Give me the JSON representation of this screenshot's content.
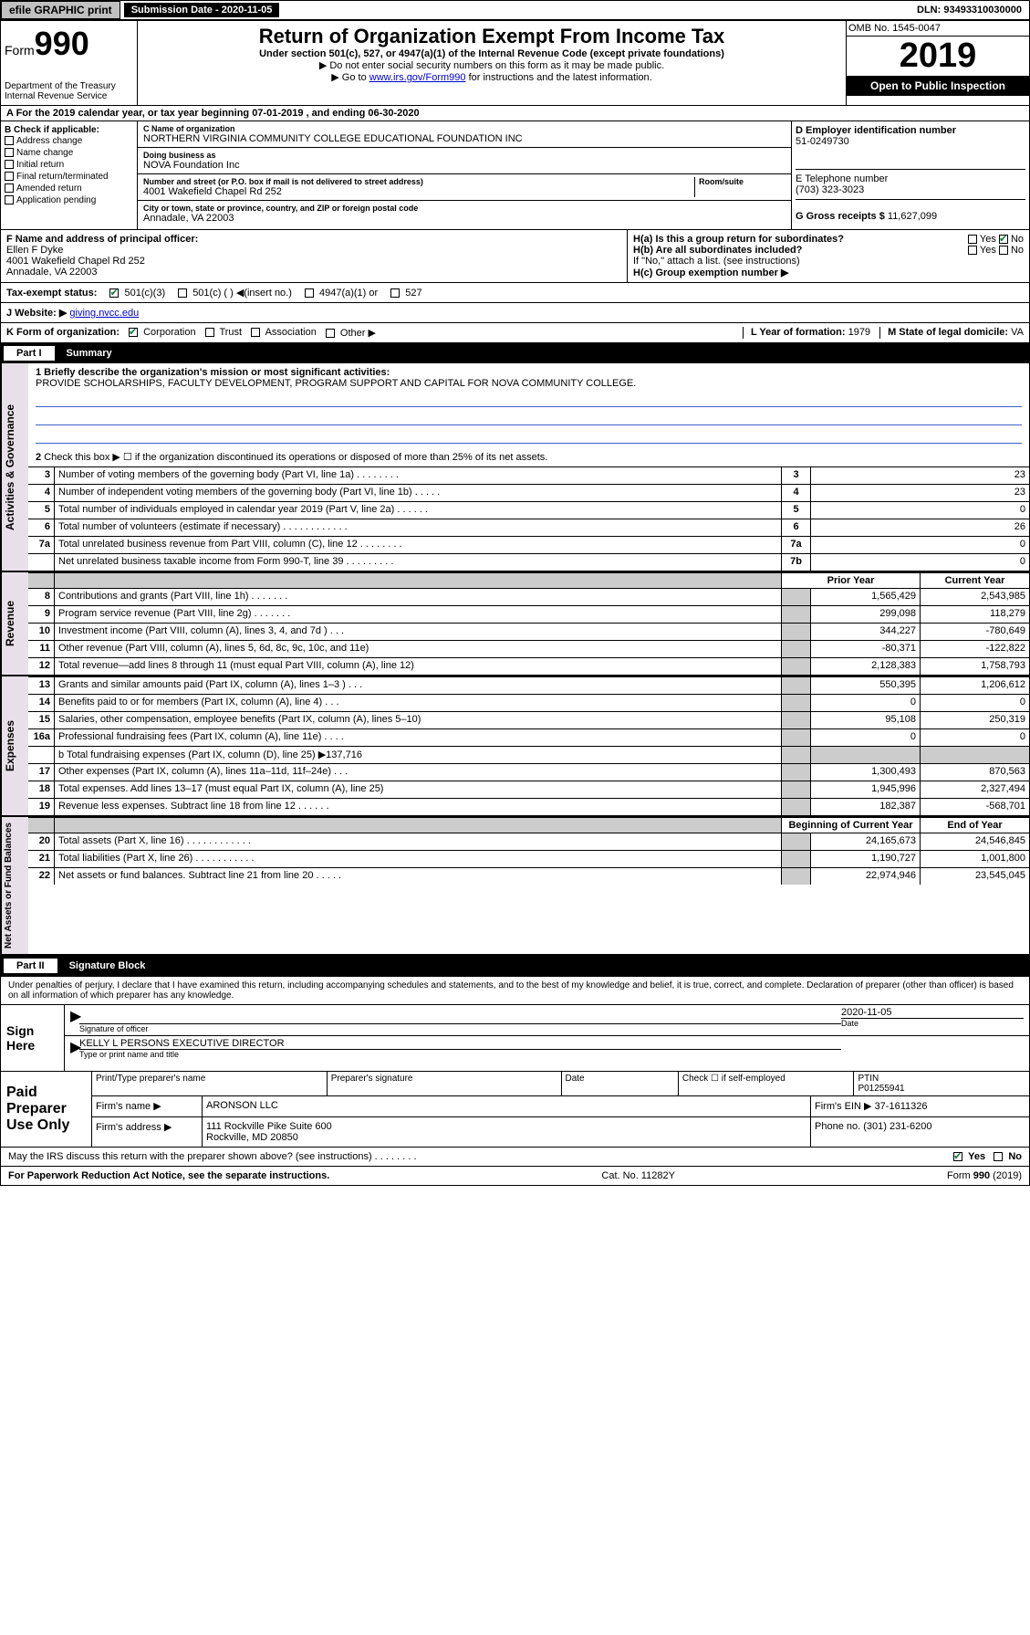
{
  "topbar": {
    "efile": "efile GRAPHIC print",
    "subdate_label": "Submission Date - ",
    "subdate": "2020-11-05",
    "dln_label": "DLN: ",
    "dln": "93493310030000"
  },
  "header": {
    "form_prefix": "Form",
    "form_num": "990",
    "dept": "Department of the Treasury\nInternal Revenue Service",
    "title": "Return of Organization Exempt From Income Tax",
    "subtitle": "Under section 501(c), 527, or 4947(a)(1) of the Internal Revenue Code (except private foundations)",
    "note1": "▶ Do not enter social security numbers on this form as it may be made public.",
    "note2_pre": "▶ Go to ",
    "note2_link": "www.irs.gov/Form990",
    "note2_post": " for instructions and the latest information.",
    "omb": "OMB No. 1545-0047",
    "year": "2019",
    "inspect": "Open to Public Inspection"
  },
  "rowA": "A  For the 2019 calendar year, or tax year beginning 07-01-2019   , and ending 06-30-2020",
  "B": {
    "label": "B Check if applicable:",
    "opts": [
      "Address change",
      "Name change",
      "Initial return",
      "Final return/terminated",
      "Amended return",
      "Application pending"
    ]
  },
  "C": {
    "name_label": "C Name of organization",
    "name": "NORTHERN VIRGINIA COMMUNITY COLLEGE EDUCATIONAL FOUNDATION INC",
    "dba_label": "Doing business as",
    "dba": "NOVA Foundation Inc",
    "addr_label": "Number and street (or P.O. box if mail is not delivered to street address)",
    "room_label": "Room/suite",
    "addr": "4001 Wakefield Chapel Rd 252",
    "city_label": "City or town, state or province, country, and ZIP or foreign postal code",
    "city": "Annadale, VA  22003"
  },
  "D": {
    "label": "D Employer identification number",
    "val": "51-0249730"
  },
  "E": {
    "label": "E Telephone number",
    "val": "(703) 323-3023"
  },
  "G": {
    "label": "G Gross receipts $ ",
    "val": "11,627,099"
  },
  "F": {
    "label": "F  Name and address of principal officer:",
    "name": "Ellen F Dyke",
    "addr1": "4001 Wakefield Chapel Rd 252",
    "addr2": "Annadale, VA  22003"
  },
  "H": {
    "a": "H(a)  Is this a group return for subordinates?",
    "a_no": true,
    "b": "H(b)  Are all subordinates included?",
    "b_note": "If \"No,\" attach a list. (see instructions)",
    "c": "H(c)  Group exemption number ▶"
  },
  "I": {
    "label": "Tax-exempt status:",
    "c501c3": true,
    "opts": [
      "501(c)(3)",
      "501(c) (  ) ◀(insert no.)",
      "4947(a)(1) or",
      "527"
    ]
  },
  "J": {
    "label": "J  Website: ▶",
    "val": "giving.nvcc.edu"
  },
  "K": {
    "label": "K Form of organization:",
    "corp": true,
    "opts": [
      "Corporation",
      "Trust",
      "Association",
      "Other ▶"
    ]
  },
  "L": {
    "label": "L Year of formation: ",
    "val": "1979"
  },
  "M": {
    "label": "M State of legal domicile: ",
    "val": "VA"
  },
  "part1": {
    "label": "Part I",
    "title": "Summary"
  },
  "governance": {
    "label": "Activities & Governance",
    "l1": "1  Briefly describe the organization's mission or most significant activities:",
    "mission": "PROVIDE SCHOLARSHIPS, FACULTY DEVELOPMENT, PROGRAM SUPPORT AND CAPITAL FOR NOVA COMMUNITY COLLEGE.",
    "l2": "Check this box ▶ ☐  if the organization discontinued its operations or disposed of more than 25% of its net assets.",
    "rows": [
      {
        "n": "3",
        "t": "Number of voting members of the governing body (Part VI, line 1a)  .  .  .  .  .  .  .  .",
        "k": "3",
        "v": "23"
      },
      {
        "n": "4",
        "t": "Number of independent voting members of the governing body (Part VI, line 1b)  .  .  .  .  .",
        "k": "4",
        "v": "23"
      },
      {
        "n": "5",
        "t": "Total number of individuals employed in calendar year 2019 (Part V, line 2a)  .  .  .  .  .  .",
        "k": "5",
        "v": "0"
      },
      {
        "n": "6",
        "t": "Total number of volunteers (estimate if necessary)  .  .  .  .  .  .  .  .  .  .  .  .",
        "k": "6",
        "v": "26"
      },
      {
        "n": "7a",
        "t": "Total unrelated business revenue from Part VIII, column (C), line 12  .  .  .  .  .  .  .  .",
        "k": "7a",
        "v": "0"
      },
      {
        "n": "",
        "t": "Net unrelated business taxable income from Form 990-T, line 39  .  .  .  .  .  .  .  .  .",
        "k": "7b",
        "v": "0"
      }
    ]
  },
  "cols": {
    "prior": "Prior Year",
    "current": "Current Year",
    "boy": "Beginning of Current Year",
    "eoy": "End of Year"
  },
  "revenue": {
    "label": "Revenue",
    "rows": [
      {
        "n": "8",
        "t": "Contributions and grants (Part VIII, line 1h)  .  .  .  .  .  .  .",
        "p": "1,565,429",
        "c": "2,543,985"
      },
      {
        "n": "9",
        "t": "Program service revenue (Part VIII, line 2g)  .  .  .  .  .  .  .",
        "p": "299,098",
        "c": "118,279"
      },
      {
        "n": "10",
        "t": "Investment income (Part VIII, column (A), lines 3, 4, and 7d )  .  .  .",
        "p": "344,227",
        "c": "-780,649"
      },
      {
        "n": "11",
        "t": "Other revenue (Part VIII, column (A), lines 5, 6d, 8c, 9c, 10c, and 11e)",
        "p": "-80,371",
        "c": "-122,822"
      },
      {
        "n": "12",
        "t": "Total revenue—add lines 8 through 11 (must equal Part VIII, column (A), line 12)",
        "p": "2,128,383",
        "c": "1,758,793"
      }
    ]
  },
  "expenses": {
    "label": "Expenses",
    "rows": [
      {
        "n": "13",
        "t": "Grants and similar amounts paid (Part IX, column (A), lines 1–3 )  .  .  .",
        "p": "550,395",
        "c": "1,206,612"
      },
      {
        "n": "14",
        "t": "Benefits paid to or for members (Part IX, column (A), line 4)  .  .  .",
        "p": "0",
        "c": "0"
      },
      {
        "n": "15",
        "t": "Salaries, other compensation, employee benefits (Part IX, column (A), lines 5–10)",
        "p": "95,108",
        "c": "250,319"
      },
      {
        "n": "16a",
        "t": "Professional fundraising fees (Part IX, column (A), line 11e)  .  .  .  .",
        "p": "0",
        "c": "0"
      }
    ],
    "l16b": "b  Total fundraising expenses (Part IX, column (D), line 25) ▶137,716",
    "rows2": [
      {
        "n": "17",
        "t": "Other expenses (Part IX, column (A), lines 11a–11d, 11f–24e)  .  .  .",
        "p": "1,300,493",
        "c": "870,563"
      },
      {
        "n": "18",
        "t": "Total expenses. Add lines 13–17 (must equal Part IX, column (A), line 25)",
        "p": "1,945,996",
        "c": "2,327,494"
      },
      {
        "n": "19",
        "t": "Revenue less expenses. Subtract line 18 from line 12  .  .  .  .  .  .",
        "p": "182,387",
        "c": "-568,701"
      }
    ]
  },
  "netassets": {
    "label": "Net Assets or Fund Balances",
    "rows": [
      {
        "n": "20",
        "t": "Total assets (Part X, line 16)  .  .  .  .  .  .  .  .  .  .  .  .",
        "p": "24,165,673",
        "c": "24,546,845"
      },
      {
        "n": "21",
        "t": "Total liabilities (Part X, line 26)  .  .  .  .  .  .  .  .  .  .  .",
        "p": "1,190,727",
        "c": "1,001,800"
      },
      {
        "n": "22",
        "t": "Net assets or fund balances. Subtract line 21 from line 20  .  .  .  .  .",
        "p": "22,974,946",
        "c": "23,545,045"
      }
    ]
  },
  "part2": {
    "label": "Part II",
    "title": "Signature Block"
  },
  "declare": "Under penalties of perjury, I declare that I have examined this return, including accompanying schedules and statements, and to the best of my knowledge and belief, it is true, correct, and complete. Declaration of preparer (other than officer) is based on all information of which preparer has any knowledge.",
  "sign": {
    "here": "Sign Here",
    "sig_officer": "Signature of officer",
    "date": "2020-11-05",
    "date_label": "Date",
    "name": "KELLY L PERSONS EXECUTIVE DIRECTOR",
    "name_label": "Type or print name and title"
  },
  "paid": {
    "label": "Paid Preparer Use Only",
    "h_prep": "Print/Type preparer's name",
    "h_sig": "Preparer's signature",
    "h_date": "Date",
    "h_self": "Check ☐ if self-employed",
    "h_ptin": "PTIN",
    "ptin": "P01255941",
    "firm_name_label": "Firm's name   ▶",
    "firm_name": "ARONSON LLC",
    "firm_ein_label": "Firm's EIN ▶",
    "firm_ein": "37-1611326",
    "firm_addr_label": "Firm's address ▶",
    "firm_addr": "111 Rockville Pike Suite 600",
    "firm_city": "Rockville, MD  20850",
    "phone_label": "Phone no. ",
    "phone": "(301) 231-6200"
  },
  "discuss": {
    "q": "May the IRS discuss this return with the preparer shown above? (see instructions)  .  .  .  .  .  .  .  .",
    "yes": true
  },
  "footer": {
    "left": "For Paperwork Reduction Act Notice, see the separate instructions.",
    "mid": "Cat. No. 11282Y",
    "right": "Form 990 (2019)"
  }
}
